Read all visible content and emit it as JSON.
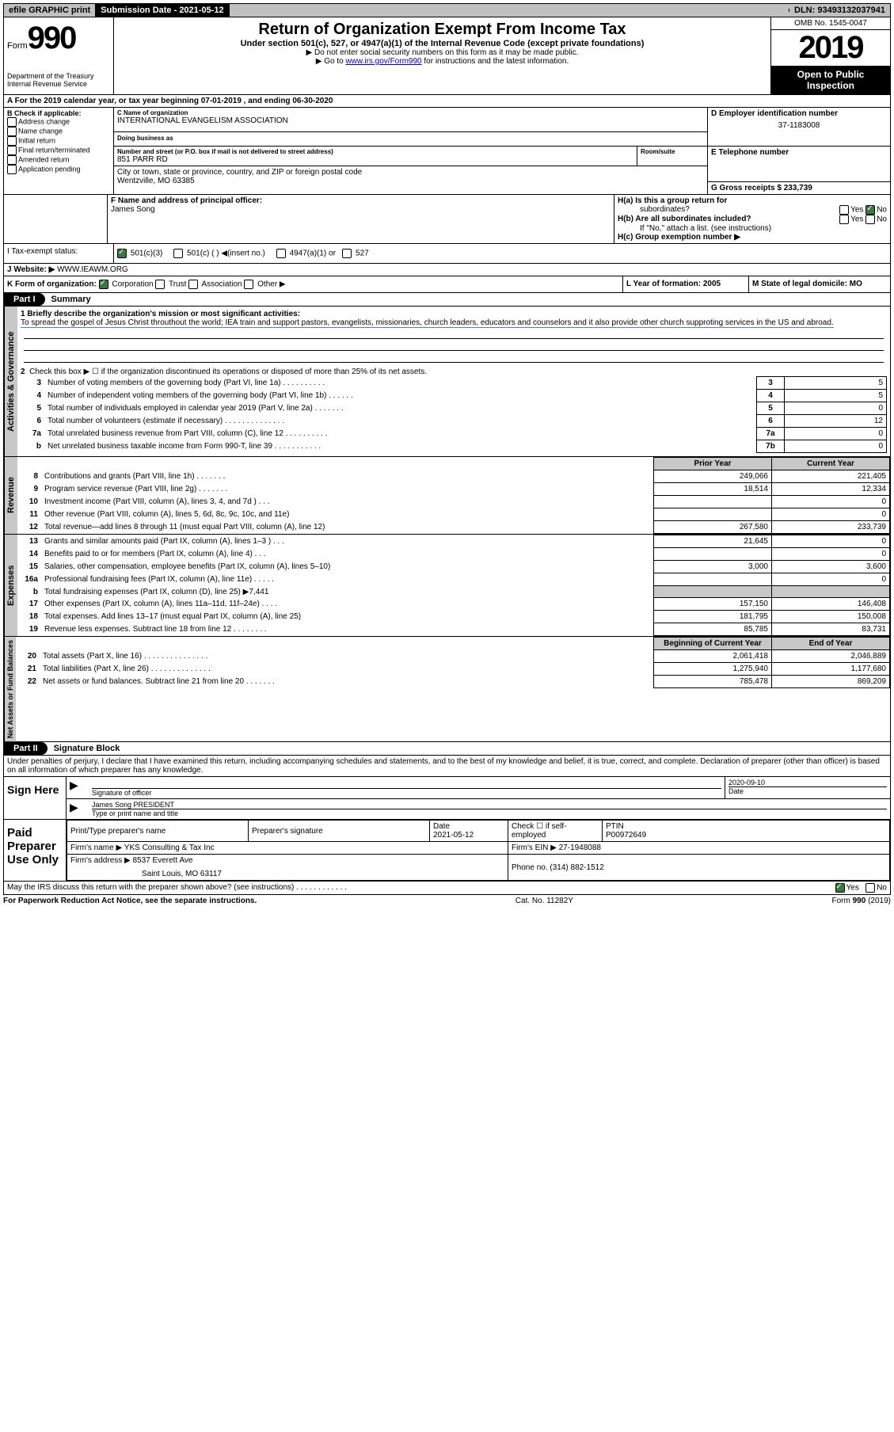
{
  "topbar": {
    "efile": "efile GRAPHIC print",
    "subdate_label": "Submission Date - 2021-05-12",
    "dln": "DLN: 93493132037941"
  },
  "header": {
    "form_word": "Form",
    "form_num": "990",
    "dept": "Department of the Treasury",
    "irs": "Internal Revenue Service",
    "title": "Return of Organization Exempt From Income Tax",
    "subtitle": "Under section 501(c), 527, or 4947(a)(1) of the Internal Revenue Code (except private foundations)",
    "note1": "▶ Do not enter social security numbers on this form as it may be made public.",
    "note2_pre": "▶ Go to ",
    "note2_link": "www.irs.gov/Form990",
    "note2_post": " for instructions and the latest information.",
    "omb": "OMB No. 1545-0047",
    "year": "2019",
    "open1": "Open to Public",
    "open2": "Inspection"
  },
  "row_a": "A   For the 2019 calendar year, or tax year beginning 07-01-2019     , and ending 06-30-2020",
  "section_b": {
    "check_label": "B Check if applicable:",
    "opts": [
      "Address change",
      "Name change",
      "Initial return",
      "Final return/terminated",
      "Amended return",
      "Application pending"
    ]
  },
  "section_c": {
    "name_label": "C Name of organization",
    "name": "INTERNATIONAL EVANGELISM ASSOCIATION",
    "dba_label": "Doing business as",
    "street_label": "Number and street (or P.O. box if mail is not delivered to street address)",
    "room_label": "Room/suite",
    "street": "851 PARR RD",
    "city_label": "City or town, state or province, country, and ZIP or foreign postal code",
    "city": "Wentzville, MO  63385"
  },
  "section_d": {
    "ein_label": "D Employer identification number",
    "ein": "37-1183008",
    "phone_label": "E Telephone number",
    "gross_label": "G Gross receipts $ 233,739"
  },
  "section_f": {
    "label": "F  Name and address of principal officer:",
    "name": "James Song"
  },
  "section_h": {
    "ha": "H(a)  Is this a group return for",
    "ha2": "subordinates?",
    "hb": "H(b)  Are all subordinates included?",
    "hb_note": "If \"No,\" attach a list. (see instructions)",
    "hc": "H(c)  Group exemption number ▶",
    "yes": "Yes",
    "no": "No"
  },
  "tax_exempt": {
    "label_i": "I    Tax-exempt status:",
    "opt1": "501(c)(3)",
    "opt2": "501(c) (  ) ◀(insert no.)",
    "opt3": "4947(a)(1) or",
    "opt4": "527"
  },
  "website": {
    "label": "J    Website: ▶",
    "value": "WWW.IEAWM.ORG"
  },
  "row_k": {
    "label": "K Form of organization:",
    "corp": "Corporation",
    "trust": "Trust",
    "assoc": "Association",
    "other": "Other ▶",
    "l": "L Year of formation: 2005",
    "m": "M State of legal domicile: MO"
  },
  "part1": {
    "header": "Part I",
    "title": "Summary"
  },
  "summary_section": {
    "line1_label": "1  Briefly describe the organization's mission or most significant activities:",
    "line1_text": "To spread the gospel of Jesus Christ throuthout the world; IEA train and support pastors, evangelists, missionaries, church leaders, educators and counselors and it also provide other church supproting services in the US and abroad.",
    "line2": "Check this box ▶ ☐  if the organization discontinued its operations or disposed of more than 25% of its net assets.",
    "lines": [
      {
        "n": "3",
        "d": "Number of voting members of the governing body (Part VI, line 1a)  .    .    .    .    .    .    .    .    .    .",
        "bl": "3",
        "v": "5"
      },
      {
        "n": "4",
        "d": "Number of independent voting members of the governing body (Part VI, line 1b)   .    .    .    .    .    .",
        "bl": "4",
        "v": "5"
      },
      {
        "n": "5",
        "d": "Total number of individuals employed in calendar year 2019 (Part V, line 2a)   .    .    .    .    .    .    .",
        "bl": "5",
        "v": "0"
      },
      {
        "n": "6",
        "d": "Total number of volunteers (estimate if necessary)    .    .    .    .    .    .    .    .    .    .    .    .    .    .",
        "bl": "6",
        "v": "12"
      },
      {
        "n": "7a",
        "d": "Total unrelated business revenue from Part VIII, column (C), line 12  .    .    .    .    .    .    .    .    .    .",
        "bl": "7a",
        "v": "0"
      },
      {
        "n": "b",
        "d": "Net unrelated business taxable income from Form 990-T, line 39   .    .    .    .    .    .    .    .    .    .    .",
        "bl": "7b",
        "v": "0"
      }
    ]
  },
  "revenue_section": {
    "prior_h": "Prior Year",
    "current_h": "Current Year",
    "lines": [
      {
        "n": "8",
        "d": "Contributions and grants (Part VIII, line 1h)   .    .    .    .    .    .    .",
        "p": "249,066",
        "c": "221,405"
      },
      {
        "n": "9",
        "d": "Program service revenue (Part VIII, line 2g)   .    .    .    .    .    .    .",
        "p": "18,514",
        "c": "12,334"
      },
      {
        "n": "10",
        "d": "Investment income (Part VIII, column (A), lines 3, 4, and 7d )   .    .    .",
        "p": "",
        "c": "0"
      },
      {
        "n": "11",
        "d": "Other revenue (Part VIII, column (A), lines 5, 6d, 8c, 9c, 10c, and 11e)",
        "p": "",
        "c": "0"
      },
      {
        "n": "12",
        "d": "Total revenue—add lines 8 through 11 (must equal Part VIII, column (A), line 12)",
        "p": "267,580",
        "c": "233,739"
      }
    ]
  },
  "expenses_section": {
    "lines": [
      {
        "n": "13",
        "d": "Grants and similar amounts paid (Part IX, column (A), lines 1–3 )   .    .    .",
        "p": "21,645",
        "c": "0"
      },
      {
        "n": "14",
        "d": "Benefits paid to or for members (Part IX, column (A), line 4)   .    .    .",
        "p": "",
        "c": "0"
      },
      {
        "n": "15",
        "d": "Salaries, other compensation, employee benefits (Part IX, column (A), lines 5–10)",
        "p": "3,000",
        "c": "3,600"
      },
      {
        "n": "16a",
        "d": "Professional fundraising fees (Part IX, column (A), line 11e)   .    .    .    .    .",
        "p": "",
        "c": "0"
      },
      {
        "n": "b",
        "d": "Total fundraising expenses (Part IX, column (D), line 25) ▶7,441",
        "p": "shaded",
        "c": "shaded"
      },
      {
        "n": "17",
        "d": "Other expenses (Part IX, column (A), lines 11a–11d, 11f–24e)   .    .    .    .",
        "p": "157,150",
        "c": "146,408"
      },
      {
        "n": "18",
        "d": "Total expenses. Add lines 13–17 (must equal Part IX, column (A), line 25)",
        "p": "181,795",
        "c": "150,008"
      },
      {
        "n": "19",
        "d": "Revenue less expenses. Subtract line 18 from line 12  .    .    .    .    .    .    .    .",
        "p": "85,785",
        "c": "83,731"
      }
    ]
  },
  "netassets_section": {
    "begin_h": "Beginning of Current Year",
    "end_h": "End of Year",
    "lines": [
      {
        "n": "20",
        "d": "Total assets (Part X, line 16)  .    .    .    .    .    .    .    .    .    .    .    .    .    .    .",
        "p": "2,061,418",
        "c": "2,046,889"
      },
      {
        "n": "21",
        "d": "Total liabilities (Part X, line 26)  .    .    .    .    .    .    .    .    .    .    .    .    .    .",
        "p": "1,275,940",
        "c": "1,177,680"
      },
      {
        "n": "22",
        "d": "Net assets or fund balances. Subtract line 21 from line 20  .    .    .    .    .    .    .",
        "p": "785,478",
        "c": "869,209"
      }
    ]
  },
  "part2": {
    "header": "Part II",
    "title": "Signature Block",
    "declaration": "Under penalties of perjury, I declare that I have examined this return, including accompanying schedules and statements, and to the best of my knowledge and belief, it is true, correct, and complete. Declaration of preparer (other than officer) is based on all information of which preparer has any knowledge."
  },
  "sign_here": {
    "label": "Sign Here",
    "sig_officer": "Signature of officer",
    "date": "Date",
    "date_val": "2020-09-10",
    "name": "James Song PRESIDENT",
    "name_label": "Type or print name and title"
  },
  "paid_prep": {
    "label": "Paid Preparer Use Only",
    "print_name": "Print/Type preparer's name",
    "prep_sig": "Preparer's signature",
    "date": "Date",
    "date_val": "2021-05-12",
    "check": "Check ☐ if self-employed",
    "ptin": "PTIN",
    "ptin_val": "P00972649",
    "firm_name_l": "Firm's name    ▶",
    "firm_name": "YKS Consulting & Tax Inc",
    "firm_ein_l": "Firm's EIN ▶",
    "firm_ein": "27-1948088",
    "firm_addr_l": "Firm's address ▶",
    "firm_addr": "8537 Everett Ave",
    "firm_city": "Saint Louis, MO  63117",
    "phone_l": "Phone no.",
    "phone": "(314) 882-1512"
  },
  "discuss": {
    "text": "May the IRS discuss this return with the preparer shown above? (see instructions)   .    .    .    .    .    .    .    .    .    .    .    .",
    "yes": "Yes",
    "no": "No"
  },
  "footer": {
    "left": "For Paperwork Reduction Act Notice, see the separate instructions.",
    "mid": "Cat. No. 11282Y",
    "right": "Form 990 (2019)"
  },
  "vlabels": {
    "gov": "Activities & Governance",
    "rev": "Revenue",
    "exp": "Expenses",
    "net": "Net Assets or Fund Balances"
  }
}
